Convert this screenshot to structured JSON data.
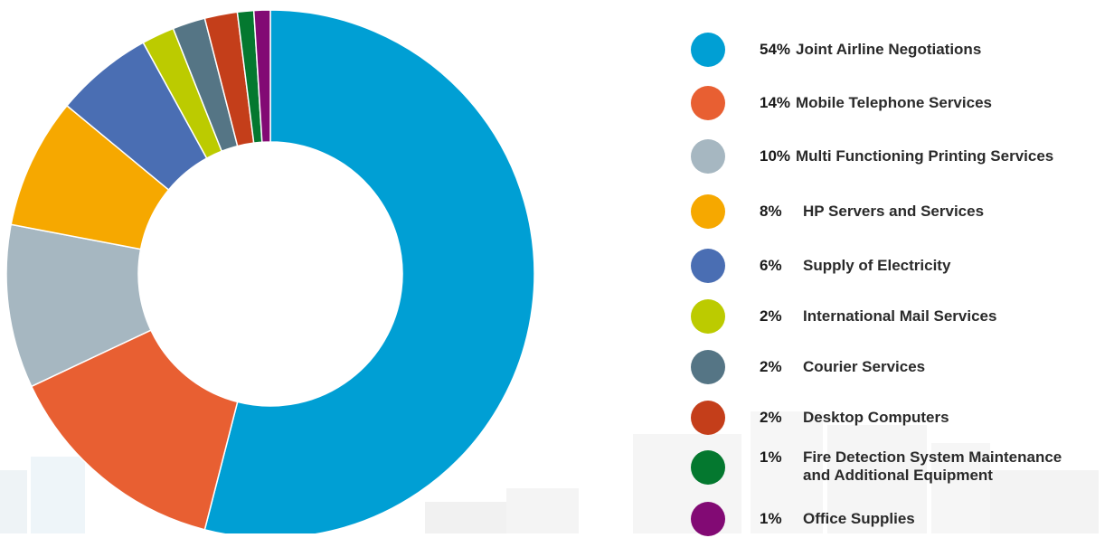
{
  "chart_data": {
    "type": "pie",
    "donut": true,
    "categories": [
      "Joint Airline Negotiations",
      "Mobile Telephone Services",
      "Multi Functioning Printing Services",
      "HP Servers and Services",
      "Supply of Electricity",
      "International Mail Services",
      "Courier Services",
      "Desktop Computers",
      "Fire Detection System Maintenance and Additional Equipment",
      "Office Supplies"
    ],
    "values": [
      54,
      14,
      10,
      8,
      6,
      2,
      2,
      2,
      1,
      1
    ],
    "percent_labels": [
      "54%",
      "14%",
      "10%",
      "8%",
      "6%",
      "2%",
      "2%",
      "2%",
      "1%",
      "1%"
    ],
    "label_lines": [
      [
        "Joint Airline Negotiations"
      ],
      [
        "Mobile Telephone Services"
      ],
      [
        "Multi Functioning Printing Services"
      ],
      [
        "HP Servers and Services"
      ],
      [
        "Supply of Electricity"
      ],
      [
        "International Mail Services"
      ],
      [
        "Courier Services"
      ],
      [
        "Desktop Computers"
      ],
      [
        "Fire Detection System Maintenance",
        "and Additional Equipment"
      ],
      [
        "Office Supplies"
      ]
    ],
    "colors": [
      "#009fd4",
      "#e85f32",
      "#a6b7c1",
      "#f6a800",
      "#4a6eb3",
      "#bccb00",
      "#557585",
      "#c43e1a",
      "#04782f",
      "#820a74"
    ],
    "legend_position": "right",
    "start_angle_deg": 0,
    "direction": "clockwise"
  }
}
